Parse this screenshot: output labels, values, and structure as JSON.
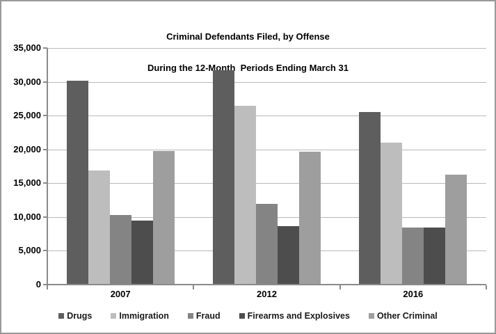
{
  "chart_data": {
    "type": "bar",
    "title_line1": "Criminal Defendants Filed, by Offense",
    "title_line2": "During the 12-Month  Periods Ending March 31",
    "categories": [
      "2007",
      "2012",
      "2016"
    ],
    "series": [
      {
        "name": "Drugs",
        "color": "#5E5E5E",
        "values": [
          30200,
          31700,
          25500
        ]
      },
      {
        "name": "Immigration",
        "color": "#BDBDBD",
        "values": [
          16900,
          26500,
          21000
        ]
      },
      {
        "name": "Fraud",
        "color": "#848484",
        "values": [
          10300,
          11900,
          8400
        ]
      },
      {
        "name": "Firearms and Explosives",
        "color": "#4D4D4D",
        "values": [
          9500,
          8700,
          8400
        ]
      },
      {
        "name": "Other Criminal",
        "color": "#9E9E9E",
        "values": [
          19800,
          19700,
          16300
        ]
      }
    ],
    "ylim": [
      0,
      35000
    ],
    "ytick_step": 5000,
    "ytick_labels": [
      "0",
      "5,000",
      "10,000",
      "15,000",
      "20,000",
      "25,000",
      "30,000",
      "35,000"
    ],
    "grid": "horizontal",
    "legend_position": "bottom",
    "xlabel": "",
    "ylabel": "",
    "colors": {
      "gridline": "#B9B9B9",
      "axis": "#8A8A8A",
      "text": "#000000",
      "frame_border": "#999999",
      "background": "#FFFFFF"
    }
  }
}
